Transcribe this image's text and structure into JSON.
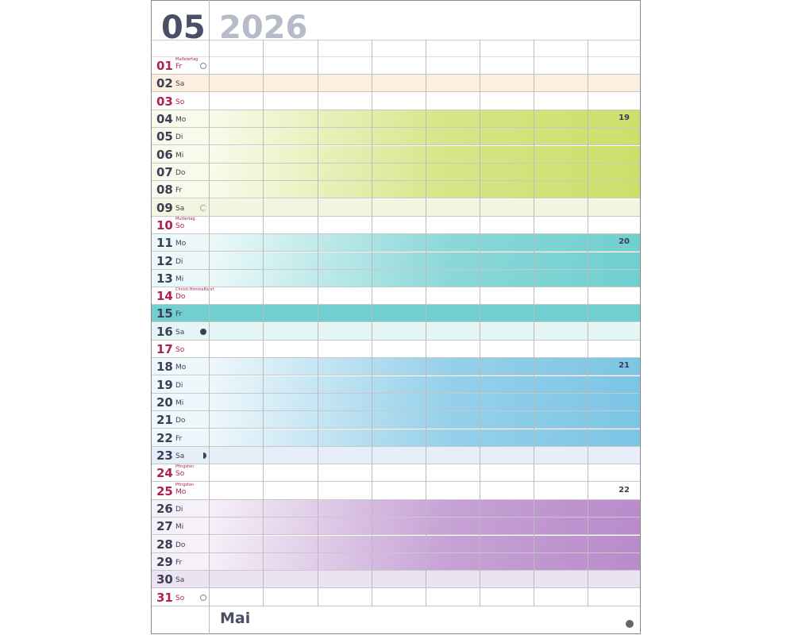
{
  "header": {
    "month": "05",
    "year": "2026"
  },
  "footer": {
    "month_name": "Mai"
  },
  "colors": {
    "sunday": "#b0224f",
    "weekday": "#3c4055"
  },
  "days": [
    {
      "d": "01",
      "wd": "Fr",
      "hol": "Maifeiertag",
      "red": true,
      "moon": "full"
    },
    {
      "d": "02",
      "wd": "Sa",
      "bg": "#fdefdf"
    },
    {
      "d": "03",
      "wd": "So",
      "red": true
    },
    {
      "d": "04",
      "wd": "Mo",
      "grad": "#cddf6a",
      "kw": "19"
    },
    {
      "d": "05",
      "wd": "Di",
      "grad": "#cddf6a"
    },
    {
      "d": "06",
      "wd": "Mi",
      "grad": "#cddf6a"
    },
    {
      "d": "07",
      "wd": "Do",
      "grad": "#cddf6a"
    },
    {
      "d": "08",
      "wd": "Fr",
      "grad": "#cddf6a"
    },
    {
      "d": "09",
      "wd": "Sa",
      "bg": "#f2f6e0",
      "moon": "last-quarter"
    },
    {
      "d": "10",
      "wd": "So",
      "hol": "Muttertag",
      "red": true
    },
    {
      "d": "11",
      "wd": "Mo",
      "grad": "#6fcfd0",
      "kw": "20"
    },
    {
      "d": "12",
      "wd": "Di",
      "grad": "#6fcfd0"
    },
    {
      "d": "13",
      "wd": "Mi",
      "grad": "#6fcfd0"
    },
    {
      "d": "14",
      "wd": "Do",
      "hol": "Christi Himmelfahrt",
      "red": true
    },
    {
      "d": "15",
      "wd": "Fr",
      "bg": "#72cfd0"
    },
    {
      "d": "16",
      "wd": "Sa",
      "bg": "#e4f5f6",
      "moon": "new"
    },
    {
      "d": "17",
      "wd": "So",
      "red": true
    },
    {
      "d": "18",
      "wd": "Mo",
      "grad": "#7cc5e5",
      "kw": "21"
    },
    {
      "d": "19",
      "wd": "Di",
      "grad": "#7cc5e5"
    },
    {
      "d": "20",
      "wd": "Mi",
      "grad": "#7cc5e5"
    },
    {
      "d": "21",
      "wd": "Do",
      "grad": "#7cc5e5"
    },
    {
      "d": "22",
      "wd": "Fr",
      "grad": "#7cc5e5"
    },
    {
      "d": "23",
      "wd": "Sa",
      "bg": "#e6eef9",
      "moon": "first-quarter"
    },
    {
      "d": "24",
      "wd": "So",
      "hol": "Pfingsten",
      "red": true
    },
    {
      "d": "25",
      "wd": "Mo",
      "hol": "Pfingsten",
      "red": true,
      "kw": "22"
    },
    {
      "d": "26",
      "wd": "Di",
      "grad": "#b98bcb"
    },
    {
      "d": "27",
      "wd": "Mi",
      "grad": "#b98bcb"
    },
    {
      "d": "28",
      "wd": "Do",
      "grad": "#b98bcb"
    },
    {
      "d": "29",
      "wd": "Fr",
      "grad": "#b98bcb"
    },
    {
      "d": "30",
      "wd": "Sa",
      "bg": "#ece3f2"
    },
    {
      "d": "31",
      "wd": "So",
      "red": true,
      "moon": "full"
    }
  ]
}
